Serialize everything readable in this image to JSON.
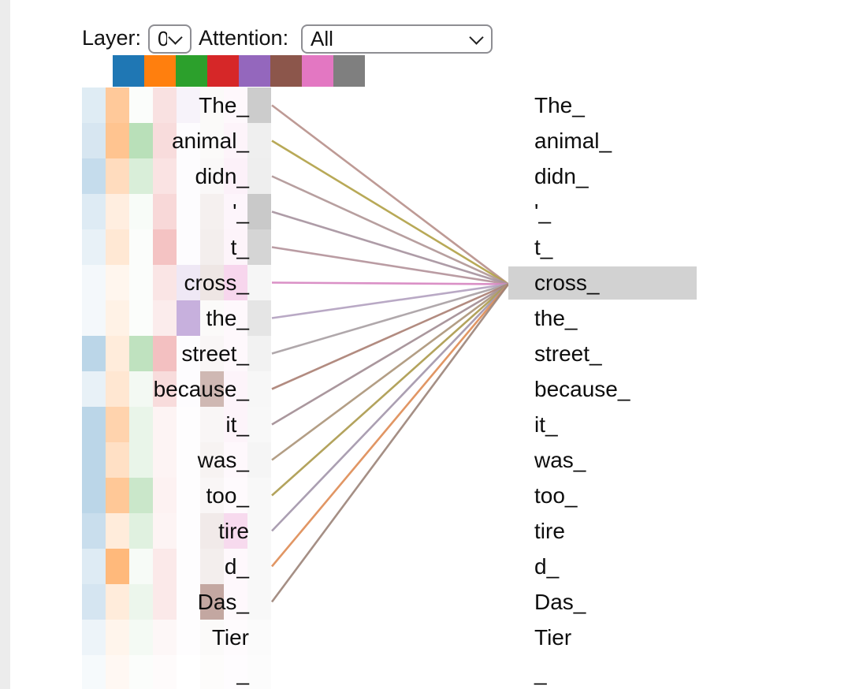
{
  "toolbar": {
    "layer_label": "Layer:",
    "layer_value": "0",
    "attention_label": "Attention:",
    "attention_value": "All"
  },
  "head_colors": [
    "#1f77b4",
    "#ff7f0e",
    "#2ca02c",
    "#d62728",
    "#9467bd",
    "#8c564b",
    "#e377c2",
    "#7f7f7f"
  ],
  "tokens": [
    "The_",
    "animal_",
    "didn_",
    "'_",
    "t_",
    "cross_",
    "the_",
    "street_",
    "because_",
    "it_",
    "was_",
    "too_",
    "tire",
    "d_",
    "Das_",
    "Tier",
    "_"
  ],
  "selected": {
    "token": "cross_",
    "index": 5,
    "side": "right",
    "highlight_color": "#d2d2d2"
  },
  "attention_grid": {
    "note": "per left-token, per-head attention opacity toward selected token cross_",
    "rows": [
      [
        0.14,
        0.42,
        0.02,
        0.14,
        0.08,
        0.03,
        0.05,
        0.4
      ],
      [
        0.18,
        0.46,
        0.33,
        0.16,
        0.02,
        0.03,
        0.08,
        0.12
      ],
      [
        0.26,
        0.27,
        0.18,
        0.13,
        0.02,
        0.04,
        0.1,
        0.13
      ],
      [
        0.15,
        0.13,
        0.03,
        0.18,
        0.02,
        0.09,
        0.07,
        0.42
      ],
      [
        0.1,
        0.18,
        0.02,
        0.28,
        0.02,
        0.1,
        0.08,
        0.33
      ],
      [
        0.05,
        0.07,
        0.02,
        0.12,
        0.15,
        0.15,
        0.3,
        0.07
      ],
      [
        0.05,
        0.1,
        0.02,
        0.09,
        0.52,
        0.03,
        0.05,
        0.2
      ],
      [
        0.3,
        0.15,
        0.3,
        0.29,
        0.02,
        0.05,
        0.05,
        0.1
      ],
      [
        0.1,
        0.19,
        0.06,
        0.16,
        0.02,
        0.42,
        0.08,
        0.06
      ],
      [
        0.3,
        0.34,
        0.1,
        0.05,
        0.01,
        0.05,
        0.08,
        0.05
      ],
      [
        0.3,
        0.24,
        0.1,
        0.05,
        0.01,
        0.07,
        0.05,
        0.08
      ],
      [
        0.3,
        0.43,
        0.25,
        0.06,
        0.01,
        0.05,
        0.04,
        0.05
      ],
      [
        0.24,
        0.15,
        0.15,
        0.05,
        0.01,
        0.12,
        0.27,
        0.05
      ],
      [
        0.15,
        0.55,
        0.04,
        0.1,
        0.01,
        0.1,
        0.05,
        0.05
      ],
      [
        0.19,
        0.15,
        0.09,
        0.1,
        0.01,
        0.52,
        0.05,
        0.05
      ],
      [
        0.08,
        0.08,
        0.05,
        0.04,
        0.01,
        0.03,
        0.03,
        0.03
      ],
      [
        0.04,
        0.05,
        0.02,
        0.02,
        0.0,
        0.02,
        0.02,
        0.02
      ]
    ]
  },
  "lines": [
    {
      "from": 0,
      "color": "#b7908a"
    },
    {
      "from": 1,
      "color": "#b1a045"
    },
    {
      "from": 2,
      "color": "#b09595"
    },
    {
      "from": 3,
      "color": "#a6929e"
    },
    {
      "from": 4,
      "color": "#b3929a"
    },
    {
      "from": 5,
      "color": "#d685c0"
    },
    {
      "from": 6,
      "color": "#b2a0bf"
    },
    {
      "from": 7,
      "color": "#a89fa3"
    },
    {
      "from": 8,
      "color": "#aa7f73"
    },
    {
      "from": 9,
      "color": "#a18c93"
    },
    {
      "from": 10,
      "color": "#ab9478"
    },
    {
      "from": 11,
      "color": "#ab9a4c"
    },
    {
      "from": 12,
      "color": "#a295aa"
    },
    {
      "from": 13,
      "color": "#de8b54"
    },
    {
      "from": 14,
      "color": "#9c8378"
    }
  ]
}
